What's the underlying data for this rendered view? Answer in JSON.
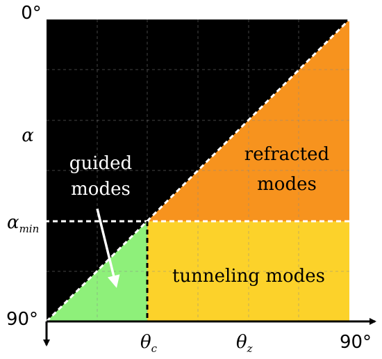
{
  "axes": {
    "y_top": "0°",
    "y_symbol": "α",
    "y_mark": {
      "symbol": "α",
      "subscript": "min"
    },
    "y_bottom": "90°",
    "x_marks": [
      {
        "symbol": "θ",
        "subscript": "c"
      },
      {
        "symbol": "θ",
        "subscript": "z"
      }
    ],
    "x_right": "90°"
  },
  "regions": {
    "guided": [
      "guided",
      "modes"
    ],
    "refracted": [
      "refracted",
      "modes"
    ],
    "tunneling": "tunneling modes"
  }
}
